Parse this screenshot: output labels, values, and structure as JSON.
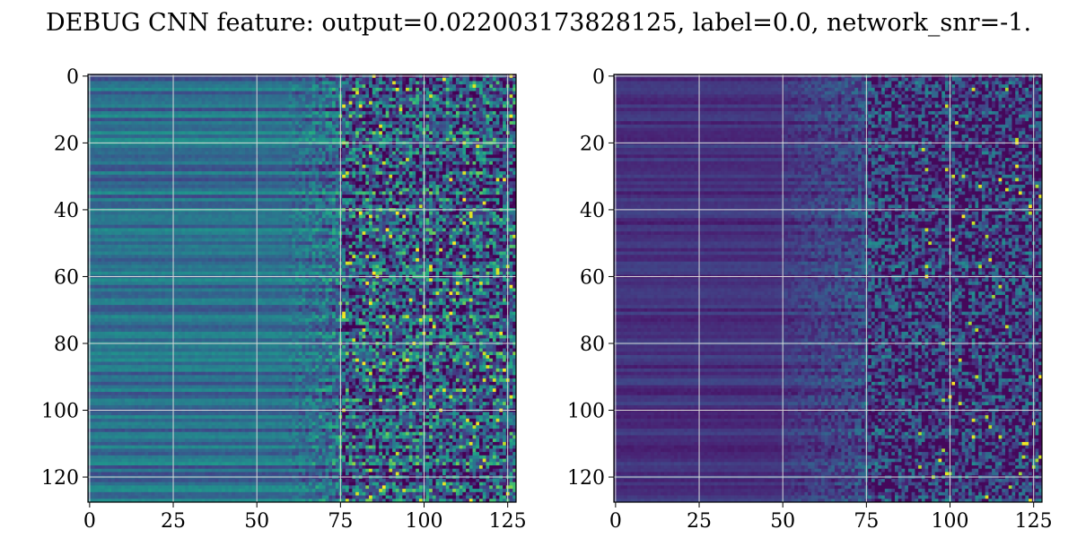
{
  "chart_data": {
    "title": "DEBUG CNN feature: output=0.022003173828125, label=0.0, network_snr=-1.",
    "panels": [
      {
        "type": "heatmap",
        "colormap": "viridis",
        "xlim": [
          0,
          128
        ],
        "ylim": [
          128,
          0
        ],
        "xticks": [
          "0",
          "25",
          "50",
          "75",
          "100",
          "125"
        ],
        "yticks": [
          "0",
          "20",
          "40",
          "60",
          "80",
          "100",
          "120"
        ],
        "grid": true,
        "description_values": "128x128 feature map; left columns smooth mid-dark rows, noisy bright values for x > 75"
      },
      {
        "type": "heatmap",
        "colormap": "viridis",
        "xlim": [
          0,
          128
        ],
        "ylim": [
          128,
          0
        ],
        "xticks": [
          "0",
          "25",
          "50",
          "75",
          "100",
          "125"
        ],
        "yticks": [
          "0",
          "20",
          "40",
          "60",
          "80",
          "100",
          "120"
        ],
        "grid": true,
        "description_values": "128x128 feature map; mostly dark, sparse bright noisy values for x > 60"
      }
    ]
  }
}
